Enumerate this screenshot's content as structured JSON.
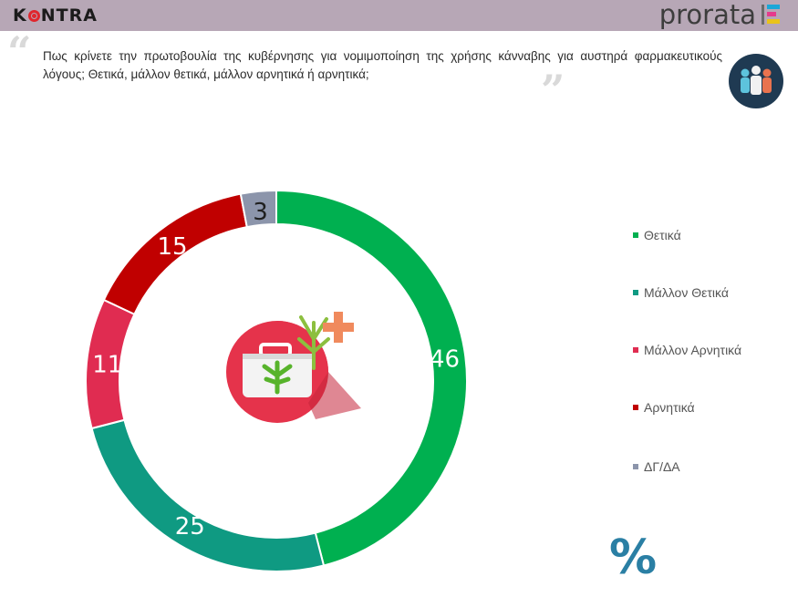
{
  "header": {
    "left_logo_text_a": "K",
    "left_logo_text_b": "NTRA",
    "right_logo_text": "prorata"
  },
  "question": {
    "text": "Πως κρίνετε την πρωτοβουλία της κυβέρνησης για νομιμοποίηση της χρήσης κάνναβης για αυστηρά φαρμακευτικούς λόγους; Θετικά, μάλλον θετικά, μάλλον αρνητικά ή αρνητικά;",
    "quote_open": "“",
    "quote_close": "”"
  },
  "colors": {
    "positive": "#00b050",
    "rather_positive": "#0f9a82",
    "rather_negative": "#e02c51",
    "negative": "#c00000",
    "dk": "#8c95ab",
    "percent": "#2a7fa4"
  },
  "icons": {
    "people": "people-group-icon",
    "medical": "medical-cannabis-kit-icon",
    "percent": "percent-icon"
  },
  "percent_symbol": "%",
  "chart_data": {
    "type": "pie",
    "donut": true,
    "title": "",
    "categories": [
      "Θετικά",
      "Μάλλον Θετικά",
      "Μάλλον Αρνητικά",
      "Αρνητικά",
      "ΔΓ/ΔΑ"
    ],
    "values": [
      46,
      25,
      11,
      15,
      3
    ],
    "colors": [
      "#00b050",
      "#0f9a82",
      "#e02c51",
      "#c00000",
      "#8c95ab"
    ],
    "legend_position": "right",
    "unit": "%"
  }
}
